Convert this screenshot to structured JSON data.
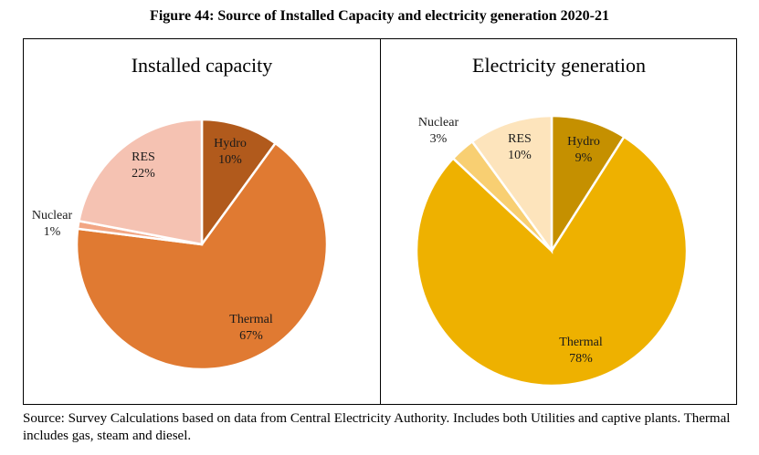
{
  "figure_title": "Figure 44: Source of Installed Capacity and electricity generation 2020-21",
  "source_note": "Source: Survey Calculations based on data from Central Electricity Authority. Includes both Utilities and captive plants. Thermal includes gas, steam and diesel.",
  "chart_data": [
    {
      "type": "pie",
      "title": "Installed capacity",
      "slices": [
        {
          "name": "Hydro",
          "value": 10,
          "label": "10%",
          "color": "#b15a1c"
        },
        {
          "name": "Thermal",
          "value": 67,
          "label": "67%",
          "color": "#e07a32"
        },
        {
          "name": "Nuclear",
          "value": 1,
          "label": "1%",
          "color": "#f2a684"
        },
        {
          "name": "RES",
          "value": 22,
          "label": "22%",
          "color": "#f5c2b2"
        }
      ]
    },
    {
      "type": "pie",
      "title": "Electricity generation",
      "slices": [
        {
          "name": "Hydro",
          "value": 9,
          "label": "9%",
          "color": "#c59000"
        },
        {
          "name": "Thermal",
          "value": 78,
          "label": "78%",
          "color": "#eeb100"
        },
        {
          "name": "Nuclear",
          "value": 3,
          "label": "3%",
          "color": "#f8cf72"
        },
        {
          "name": "RES",
          "value": 10,
          "label": "10%",
          "color": "#fde4bc"
        }
      ]
    }
  ]
}
